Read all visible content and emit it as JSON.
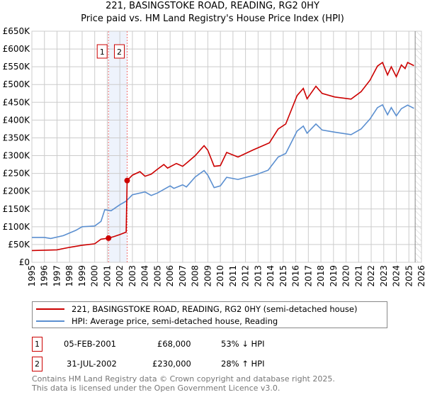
{
  "title": "221, BASINGSTOKE ROAD, READING, RG2 0HY",
  "subtitle": "Price paid vs. HM Land Registry's House Price Index (HPI)",
  "chart_data": {
    "type": "line",
    "title": "221, BASINGSTOKE ROAD, READING, RG2 0HY - Price paid vs. HM Land Registry's House Price Index (HPI)",
    "xlim": [
      1995,
      2026
    ],
    "ylim": [
      0,
      650000
    ],
    "x_ticks": [
      "1995",
      "1996",
      "1997",
      "1998",
      "1999",
      "2000",
      "2001",
      "2002",
      "2003",
      "2004",
      "2005",
      "2006",
      "2007",
      "2008",
      "2009",
      "2010",
      "2011",
      "2012",
      "2013",
      "2014",
      "2015",
      "2016",
      "2017",
      "2018",
      "2019",
      "2020",
      "2021",
      "2022",
      "2023",
      "2024",
      "2025",
      "2026"
    ],
    "y_ticks": [
      {
        "v": 0,
        "label": "£0"
      },
      {
        "v": 50000,
        "label": "£50K"
      },
      {
        "v": 100000,
        "label": "£100K"
      },
      {
        "v": 150000,
        "label": "£150K"
      },
      {
        "v": 200000,
        "label": "£200K"
      },
      {
        "v": 250000,
        "label": "£250K"
      },
      {
        "v": 300000,
        "label": "£300K"
      },
      {
        "v": 350000,
        "label": "£350K"
      },
      {
        "v": 400000,
        "label": "£400K"
      },
      {
        "v": 450000,
        "label": "£450K"
      },
      {
        "v": 500000,
        "label": "£500K"
      },
      {
        "v": 550000,
        "label": "£550K"
      },
      {
        "v": 600000,
        "label": "£600K"
      },
      {
        "v": 650000,
        "label": "£650K"
      }
    ],
    "grid": true,
    "series": [
      {
        "name": "221, BASINGSTOKE ROAD, READING, RG2 0HY (semi-detached house)",
        "color": "#cc0000",
        "x": [
          1995,
          1997,
          1998,
          1999,
          2000,
          2000.5,
          2001.1,
          2001.5,
          2002,
          2002.5,
          2002.58,
          2003,
          2003.6,
          2004,
          2004.5,
          2005,
          2005.5,
          2005.8,
          2006.5,
          2007,
          2007.5,
          2008,
          2008.7,
          2009,
          2009.5,
          2010,
          2010.5,
          2011.4,
          2012.6,
          2013.9,
          2014.6,
          2015.2,
          2016.1,
          2016.6,
          2016.9,
          2017.6,
          2018.1,
          2019.1,
          2020.4,
          2021.2,
          2021.9,
          2022.5,
          2022.9,
          2023.3,
          2023.6,
          2024.0,
          2024.4,
          2024.7,
          2024.9,
          2025.4
        ],
        "y": [
          33000,
          35000,
          42000,
          48000,
          52000,
          65000,
          68000,
          72000,
          78000,
          85000,
          230000,
          245000,
          255000,
          242000,
          248000,
          262000,
          275000,
          265000,
          278000,
          270000,
          285000,
          300000,
          328000,
          315000,
          270000,
          272000,
          309000,
          296000,
          316000,
          336000,
          375000,
          389000,
          469000,
          489000,
          460000,
          495000,
          475000,
          465000,
          459000,
          480000,
          512000,
          552000,
          562000,
          527000,
          550000,
          522000,
          555000,
          545000,
          562000,
          553000
        ]
      },
      {
        "name": "HPI: Average price, semi-detached house, Reading",
        "color": "#5b8fd0",
        "x": [
          1995,
          1996,
          1996.5,
          1997.5,
          1998.5,
          1999,
          2000,
          2000.5,
          2000.8,
          2001.3,
          2002,
          2002.5,
          2003,
          2004,
          2004.5,
          2005,
          2006,
          2006.3,
          2007,
          2007.3,
          2008,
          2008.7,
          2009,
          2009.5,
          2010,
          2010.5,
          2011.4,
          2012.8,
          2013.8,
          2014.6,
          2015.2,
          2016.1,
          2016.6,
          2016.9,
          2017.6,
          2018.1,
          2019.1,
          2020.4,
          2021.2,
          2021.9,
          2022.5,
          2022.9,
          2023.3,
          2023.6,
          2024.0,
          2024.4,
          2024.9,
          2025.4
        ],
        "y": [
          70000,
          70000,
          67000,
          75000,
          90000,
          100000,
          102000,
          115000,
          148000,
          145000,
          162000,
          172000,
          190000,
          198000,
          188000,
          195000,
          215000,
          208000,
          218000,
          212000,
          240000,
          258000,
          245000,
          210000,
          215000,
          239000,
          233000,
          246000,
          259000,
          296000,
          306000,
          369000,
          383000,
          363000,
          389000,
          372000,
          366000,
          359000,
          375000,
          403000,
          435000,
          443000,
          415000,
          435000,
          412000,
          432000,
          442000,
          433000
        ]
      }
    ],
    "sales": [
      {
        "id": "1",
        "x": 2001.1,
        "y": 68000
      },
      {
        "id": "2",
        "x": 2002.58,
        "y": 230000
      }
    ],
    "forecast_hatch_from": 2025.5,
    "legend": "bottom"
  },
  "legend": {
    "items": [
      {
        "label": "221, BASINGSTOKE ROAD, READING, RG2 0HY (semi-detached house)",
        "color": "#cc0000"
      },
      {
        "label": "HPI: Average price, semi-detached house, Reading",
        "color": "#5b8fd0"
      }
    ]
  },
  "transactions": [
    {
      "id": "1",
      "date": "05-FEB-2001",
      "price": "£68,000",
      "hpi": "53% ↓ HPI"
    },
    {
      "id": "2",
      "date": "31-JUL-2002",
      "price": "£230,000",
      "hpi": "28% ↑ HPI"
    }
  ],
  "footer": {
    "line1": "Contains HM Land Registry data © Crown copyright and database right 2025.",
    "line2": "This data is licensed under the Open Government Licence v3.0."
  }
}
